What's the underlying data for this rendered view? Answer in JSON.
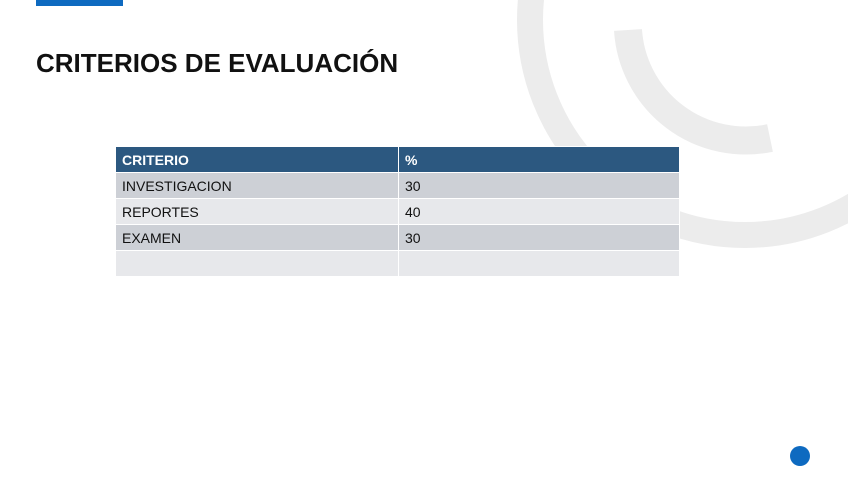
{
  "header": {
    "title": "CRITERIOS DE EVALUACIÓN"
  },
  "table": {
    "header": [
      "CRITERIO",
      "%"
    ],
    "rows": [
      [
        "INVESTIGACION",
        30
      ],
      [
        "REPORTES",
        40
      ],
      [
        "EXAMEN",
        30
      ]
    ]
  }
}
